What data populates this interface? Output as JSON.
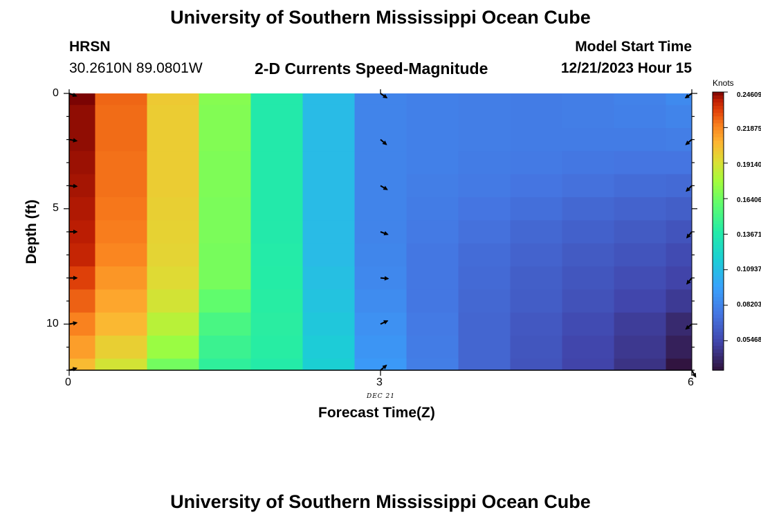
{
  "page": {
    "title": "University of Southern Mississippi Ocean Cube",
    "footer_title": "University of Southern Mississippi Ocean Cube",
    "station_name": "HRSN",
    "station_coords": "30.2610N  89.0801W",
    "subtitle": "2-D Currents Speed-Magnitude",
    "model_start_label": "Model Start Time",
    "model_start_value": "12/21/2023 Hour 15"
  },
  "chart_data": {
    "type": "heatmap",
    "title": "2-D Currents Speed-Magnitude",
    "xlabel": "Forecast Time(Z)",
    "ylabel": "Depth (ft)",
    "x_date_label": "DEC 21",
    "xlim": [
      0,
      6
    ],
    "ylim": [
      12,
      0
    ],
    "x_ticks": [
      "0",
      "3",
      "6"
    ],
    "y_ticks": [
      "0",
      "5",
      "10"
    ],
    "colorbar": {
      "unit": "Knots",
      "range": [
        0.032,
        0.2461
      ],
      "tick_labels": [
        "0.24609",
        "0.21875",
        "0.19140",
        "0.16406",
        "0.13671",
        "0.10937",
        "0.08203",
        "0.05468"
      ]
    },
    "columns_x": [
      0,
      0.5,
      1,
      1.5,
      2,
      2.5,
      3,
      3.5,
      4,
      4.5,
      5,
      5.5,
      6
    ],
    "rows_depth": [
      0,
      1,
      2,
      3,
      4,
      5,
      6,
      7,
      8,
      9,
      10,
      11,
      12
    ],
    "values": [
      [
        0.246,
        0.225,
        0.2,
        0.17,
        0.137,
        0.108,
        0.082,
        0.08,
        0.079,
        0.078,
        0.079,
        0.081,
        0.085
      ],
      [
        0.244,
        0.224,
        0.199,
        0.169,
        0.137,
        0.108,
        0.082,
        0.08,
        0.079,
        0.078,
        0.079,
        0.08,
        0.082
      ],
      [
        0.244,
        0.224,
        0.199,
        0.169,
        0.137,
        0.108,
        0.082,
        0.08,
        0.079,
        0.078,
        0.078,
        0.078,
        0.079
      ],
      [
        0.243,
        0.223,
        0.199,
        0.168,
        0.137,
        0.108,
        0.082,
        0.08,
        0.078,
        0.077,
        0.076,
        0.075,
        0.075
      ],
      [
        0.242,
        0.223,
        0.199,
        0.168,
        0.137,
        0.108,
        0.082,
        0.079,
        0.077,
        0.075,
        0.073,
        0.071,
        0.07
      ],
      [
        0.241,
        0.222,
        0.198,
        0.167,
        0.137,
        0.108,
        0.082,
        0.078,
        0.075,
        0.072,
        0.069,
        0.067,
        0.065
      ],
      [
        0.24,
        0.221,
        0.197,
        0.167,
        0.137,
        0.108,
        0.082,
        0.077,
        0.073,
        0.069,
        0.066,
        0.063,
        0.06
      ],
      [
        0.238,
        0.219,
        0.196,
        0.166,
        0.138,
        0.108,
        0.083,
        0.076,
        0.071,
        0.067,
        0.063,
        0.06,
        0.056
      ],
      [
        0.232,
        0.215,
        0.194,
        0.166,
        0.139,
        0.11,
        0.084,
        0.076,
        0.07,
        0.065,
        0.061,
        0.057,
        0.053
      ],
      [
        0.226,
        0.211,
        0.19,
        0.16,
        0.14,
        0.112,
        0.086,
        0.076,
        0.069,
        0.064,
        0.059,
        0.054,
        0.049
      ],
      [
        0.22,
        0.206,
        0.183,
        0.152,
        0.141,
        0.114,
        0.088,
        0.077,
        0.068,
        0.062,
        0.056,
        0.05,
        0.042
      ],
      [
        0.213,
        0.198,
        0.175,
        0.147,
        0.14,
        0.116,
        0.09,
        0.078,
        0.068,
        0.061,
        0.054,
        0.048,
        0.038
      ],
      [
        0.205,
        0.19,
        0.165,
        0.143,
        0.138,
        0.118,
        0.092,
        0.079,
        0.068,
        0.06,
        0.053,
        0.046,
        0.033
      ]
    ],
    "vectors": [
      {
        "x": 0,
        "depths": [
          0,
          2,
          4,
          6,
          8,
          10,
          12
        ],
        "angles_deg": [
          20,
          10,
          5,
          0,
          0,
          -10,
          -15
        ]
      },
      {
        "x": 3,
        "depths": [
          0,
          2,
          4,
          6,
          8,
          10,
          12
        ],
        "angles_deg": [
          35,
          40,
          30,
          20,
          5,
          -25,
          -40
        ]
      },
      {
        "x": 6,
        "depths": [
          0,
          2,
          4,
          6,
          8,
          10,
          12
        ],
        "angles_deg": [
          145,
          140,
          135,
          130,
          130,
          140,
          60
        ]
      }
    ]
  }
}
